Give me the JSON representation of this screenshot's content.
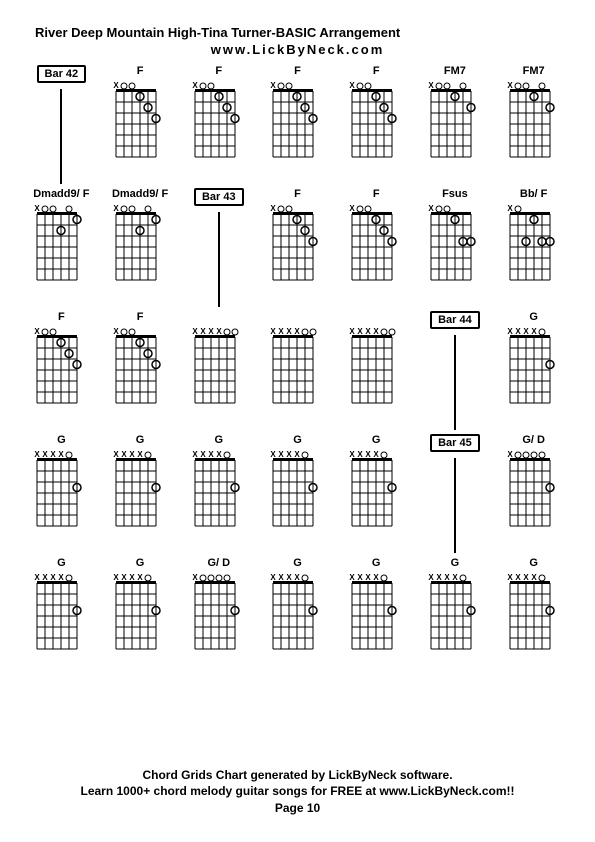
{
  "title": "River Deep Mountain High-Tina Turner-BASIC Arrangement",
  "website": "www.LickByNeck.com",
  "footer_line1": "Chord Grids Chart generated by LickByNeck software.",
  "footer_line2": "Learn 1000+ chord melody guitar songs for FREE at www.LickByNeck.com!!",
  "page_label": "Page 10",
  "diagram": {
    "strings": 6,
    "frets": 6,
    "width": 48,
    "height": 78,
    "grid_color": "#000000",
    "dot_radius": 4,
    "open_radius": 3
  },
  "rows": [
    [
      {
        "type": "bar",
        "label": "Bar 42"
      },
      {
        "type": "chord",
        "label": "F",
        "x": [
          0
        ],
        "open": [
          1,
          2
        ],
        "dots": [
          [
            3,
            1
          ],
          [
            4,
            2
          ],
          [
            5,
            3
          ]
        ]
      },
      {
        "type": "chord",
        "label": "F",
        "x": [
          0
        ],
        "open": [
          1,
          2
        ],
        "dots": [
          [
            3,
            1
          ],
          [
            4,
            2
          ],
          [
            5,
            3
          ]
        ]
      },
      {
        "type": "chord",
        "label": "F",
        "x": [
          0
        ],
        "open": [
          1,
          2
        ],
        "dots": [
          [
            3,
            1
          ],
          [
            4,
            2
          ],
          [
            5,
            3
          ]
        ]
      },
      {
        "type": "chord",
        "label": "F",
        "x": [
          0
        ],
        "open": [
          1,
          2
        ],
        "dots": [
          [
            3,
            1
          ],
          [
            4,
            2
          ],
          [
            5,
            3
          ]
        ]
      },
      {
        "type": "chord",
        "label": "FM7",
        "x": [
          0
        ],
        "open": [
          1,
          2,
          4
        ],
        "dots": [
          [
            3,
            1
          ],
          [
            5,
            2
          ]
        ]
      },
      {
        "type": "chord",
        "label": "FM7",
        "x": [
          0
        ],
        "open": [
          1,
          2,
          4
        ],
        "dots": [
          [
            3,
            1
          ],
          [
            5,
            2
          ]
        ]
      }
    ],
    [
      {
        "type": "chord",
        "label": "Dmadd9/ F",
        "x": [
          0
        ],
        "open": [
          1,
          2,
          4
        ],
        "dots": [
          [
            5,
            1
          ],
          [
            3,
            2
          ]
        ]
      },
      {
        "type": "chord",
        "label": "Dmadd9/ F",
        "x": [
          0
        ],
        "open": [
          1,
          2,
          4
        ],
        "dots": [
          [
            5,
            1
          ],
          [
            3,
            2
          ]
        ]
      },
      {
        "type": "bar",
        "label": "Bar 43"
      },
      {
        "type": "chord",
        "label": "F",
        "x": [
          0
        ],
        "open": [
          1,
          2
        ],
        "dots": [
          [
            3,
            1
          ],
          [
            4,
            2
          ],
          [
            5,
            3
          ]
        ]
      },
      {
        "type": "chord",
        "label": "F",
        "x": [
          0
        ],
        "open": [
          1,
          2
        ],
        "dots": [
          [
            3,
            1
          ],
          [
            4,
            2
          ],
          [
            5,
            3
          ]
        ]
      },
      {
        "type": "chord",
        "label": "Fsus",
        "x": [
          0
        ],
        "open": [
          1,
          2
        ],
        "dots": [
          [
            3,
            1
          ],
          [
            4,
            3
          ],
          [
            5,
            3
          ]
        ]
      },
      {
        "type": "chord",
        "label": "Bb/ F",
        "x": [
          0
        ],
        "open": [
          1
        ],
        "dots": [
          [
            3,
            1
          ],
          [
            4,
            3
          ],
          [
            5,
            3
          ],
          [
            2,
            3
          ]
        ]
      }
    ],
    [
      {
        "type": "chord",
        "label": "F",
        "x": [
          0
        ],
        "open": [
          1,
          2
        ],
        "dots": [
          [
            3,
            1
          ],
          [
            4,
            2
          ],
          [
            5,
            3
          ]
        ]
      },
      {
        "type": "chord",
        "label": "F",
        "x": [
          0
        ],
        "open": [
          1,
          2
        ],
        "dots": [
          [
            3,
            1
          ],
          [
            4,
            2
          ],
          [
            5,
            3
          ]
        ]
      },
      {
        "type": "chord",
        "label": "",
        "x": [
          0,
          1,
          2,
          3
        ],
        "open": [
          4,
          5
        ],
        "dots": []
      },
      {
        "type": "chord",
        "label": "",
        "x": [
          0,
          1,
          2,
          3
        ],
        "open": [
          4,
          5
        ],
        "dots": []
      },
      {
        "type": "chord",
        "label": "",
        "x": [
          0,
          1,
          2,
          3
        ],
        "open": [
          4,
          5
        ],
        "dots": []
      },
      {
        "type": "bar",
        "label": "Bar 44"
      },
      {
        "type": "chord",
        "label": "G",
        "x": [
          0,
          1,
          2,
          3
        ],
        "open": [
          4
        ],
        "dots": [
          [
            5,
            3
          ]
        ]
      }
    ],
    [
      {
        "type": "chord",
        "label": "G",
        "x": [
          0,
          1,
          2,
          3
        ],
        "open": [
          4
        ],
        "dots": [
          [
            5,
            3
          ]
        ]
      },
      {
        "type": "chord",
        "label": "G",
        "x": [
          0,
          1,
          2,
          3
        ],
        "open": [
          4
        ],
        "dots": [
          [
            5,
            3
          ]
        ]
      },
      {
        "type": "chord",
        "label": "G",
        "x": [
          0,
          1,
          2,
          3
        ],
        "open": [
          4
        ],
        "dots": [
          [
            5,
            3
          ]
        ]
      },
      {
        "type": "chord",
        "label": "G",
        "x": [
          0,
          1,
          2,
          3
        ],
        "open": [
          4
        ],
        "dots": [
          [
            5,
            3
          ]
        ]
      },
      {
        "type": "chord",
        "label": "G",
        "x": [
          0,
          1,
          2,
          3
        ],
        "open": [
          4
        ],
        "dots": [
          [
            5,
            3
          ]
        ]
      },
      {
        "type": "bar",
        "label": "Bar 45"
      },
      {
        "type": "chord",
        "label": "G/ D",
        "x": [
          0
        ],
        "open": [
          1,
          2,
          3,
          4
        ],
        "dots": [
          [
            5,
            3
          ]
        ]
      }
    ],
    [
      {
        "type": "chord",
        "label": "G",
        "x": [
          0,
          1,
          2,
          3
        ],
        "open": [
          4
        ],
        "dots": [
          [
            5,
            3
          ]
        ]
      },
      {
        "type": "chord",
        "label": "G",
        "x": [
          0,
          1,
          2,
          3
        ],
        "open": [
          4
        ],
        "dots": [
          [
            5,
            3
          ]
        ]
      },
      {
        "type": "chord",
        "label": "G/ D",
        "x": [
          0
        ],
        "open": [
          1,
          2,
          3,
          4
        ],
        "dots": [
          [
            5,
            3
          ]
        ]
      },
      {
        "type": "chord",
        "label": "G",
        "x": [
          0,
          1,
          2,
          3
        ],
        "open": [
          4
        ],
        "dots": [
          [
            5,
            3
          ]
        ]
      },
      {
        "type": "chord",
        "label": "G",
        "x": [
          0,
          1,
          2,
          3
        ],
        "open": [
          4
        ],
        "dots": [
          [
            5,
            3
          ]
        ]
      },
      {
        "type": "chord",
        "label": "G",
        "x": [
          0,
          1,
          2,
          3
        ],
        "open": [
          4
        ],
        "dots": [
          [
            5,
            3
          ]
        ]
      },
      {
        "type": "chord",
        "label": "G",
        "x": [
          0,
          1,
          2,
          3
        ],
        "open": [
          4
        ],
        "dots": [
          [
            5,
            3
          ]
        ]
      }
    ]
  ],
  "row_separators_after": [
    1,
    1,
    0,
    0,
    0
  ]
}
